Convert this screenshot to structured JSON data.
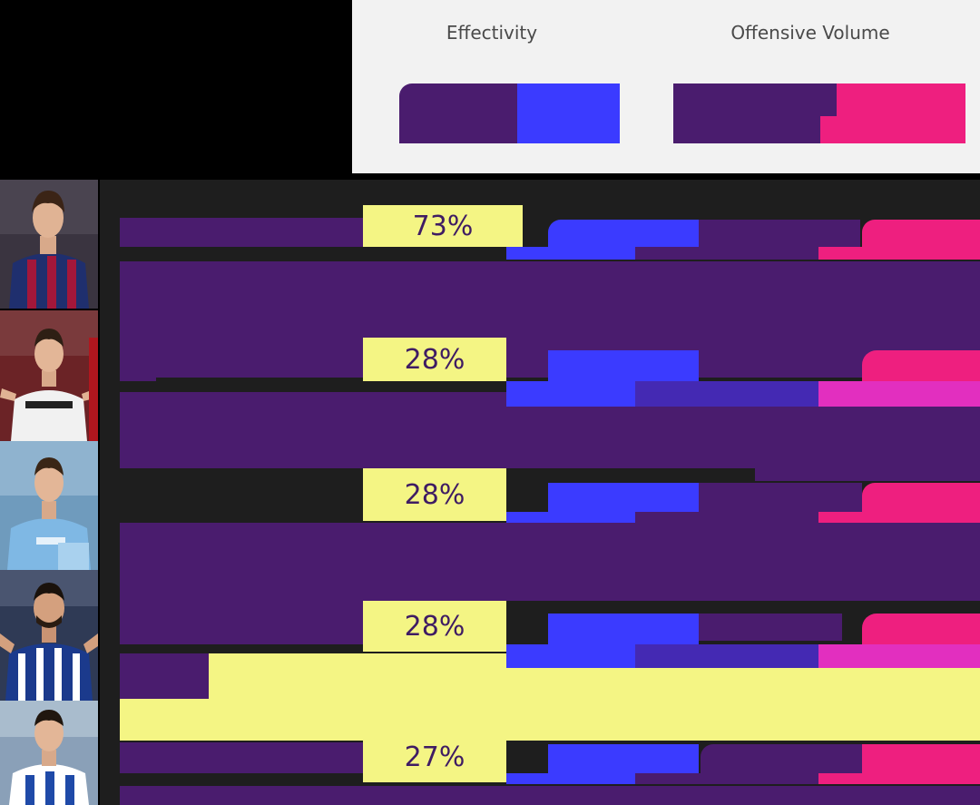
{
  "header": {
    "effectivity_label": "Effectivity",
    "offensive_volume_label": "Offensive Volume"
  },
  "colors": {
    "purple": "#4a1c6e",
    "blue": "#3b3bff",
    "pink": "#ee1f7f",
    "yellow": "#f4f584",
    "header_bg": "#f2f2f2"
  },
  "chart_data": {
    "type": "table",
    "columns": [
      "Effectivity",
      "Offensive Volume"
    ],
    "rows": [
      {
        "effectivity": "73%"
      },
      {
        "effectivity": "28%"
      },
      {
        "effectivity": "28%"
      },
      {
        "effectivity": "28%"
      },
      {
        "effectivity": "27%"
      }
    ]
  }
}
